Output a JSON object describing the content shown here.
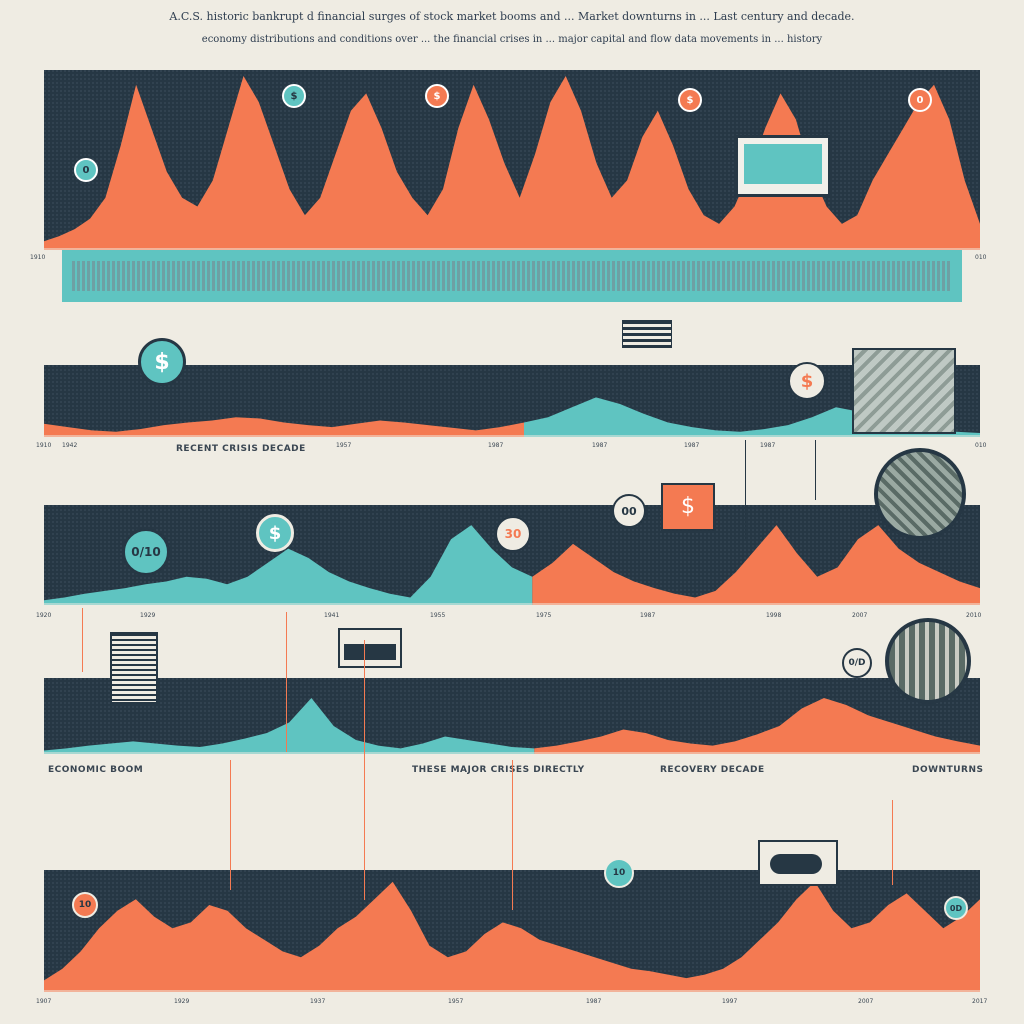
{
  "header": {
    "line1": "A.C.S. historic bankrupt d financial surges of stock market booms and ... Market downturns in ... Last century and decade.",
    "line2": "economy distributions and conditions over ... the financial crises in ... major capital and flow data movements in ... history"
  },
  "colors": {
    "background": "#efece3",
    "band": "#263744",
    "accent_orange": "#f47a52",
    "accent_teal": "#5fc4c1",
    "text": "#2a3340"
  },
  "icons": [
    "dollar-icon",
    "flag-icon",
    "bull-icon",
    "monitor-icon",
    "money-stack-icon",
    "city-icon",
    "arrow-down-icon",
    "pin-icon"
  ],
  "bands": [
    {
      "ticks_left": "1910",
      "ticks_right": "010"
    },
    {
      "ticks": [
        "1910",
        "1942",
        "1957",
        "1987",
        "1987",
        "1987",
        "1987",
        "010"
      ]
    },
    {
      "ticks": [
        "1920",
        "1929",
        "1941",
        "1955",
        "1975",
        "1987",
        "1998",
        "2007",
        "2010"
      ]
    },
    {
      "ticks": []
    },
    {
      "ticks": [
        "1907",
        "1929",
        "1937",
        "1957",
        "1987",
        "1997",
        "2007",
        "2017"
      ]
    }
  ],
  "markers": {
    "m1": "0",
    "m2": "$",
    "m3": "$",
    "m4": "$",
    "m5": "0",
    "m6": "$",
    "m7": "$",
    "m8": "0",
    "m9": "30",
    "m10": "00",
    "m11": "$",
    "m12": "0/10",
    "m13": "0/D",
    "m14": "10",
    "m15": "10",
    "m16": "0D"
  },
  "headings": {
    "h1": "RECENT CRISIS DECADE",
    "h2": "ECONOMIC BOOM",
    "h3": "THESE MAJOR CRISES DIRECTLY",
    "h4": "RECOVERY DECADE",
    "h5": "DOWNTURNS"
  },
  "chart_data": [
    {
      "type": "area",
      "series": [
        {
          "values": [
            5,
            8,
            12,
            18,
            30,
            60,
            95,
            70,
            45,
            30,
            25,
            40,
            70,
            100,
            85,
            60,
            35,
            20,
            30,
            55,
            80,
            90,
            70,
            45,
            30,
            20,
            35,
            70,
            95,
            75,
            50,
            30,
            55,
            85,
            100,
            80,
            50,
            30,
            40,
            65,
            80,
            60,
            35,
            20,
            15,
            25,
            45,
            70,
            90,
            75,
            45,
            25,
            15,
            20,
            40,
            55,
            70,
            85,
            95,
            75,
            40,
            15
          ]
        }
      ]
    },
    {
      "type": "area",
      "series": [
        {
          "values": [
            20,
            15,
            10,
            8,
            12,
            18,
            22,
            25,
            30,
            28,
            22,
            18,
            15,
            20,
            25,
            22,
            18,
            14,
            10,
            15,
            22,
            30,
            45,
            60,
            50,
            35,
            22,
            15,
            10,
            8,
            12,
            18,
            30,
            45,
            38,
            25,
            15,
            10,
            8,
            6
          ]
        }
      ]
    },
    {
      "type": "area",
      "series": [
        {
          "values": [
            5,
            8,
            12,
            15,
            18,
            22,
            25,
            30,
            28,
            22,
            30,
            45,
            60,
            50,
            35,
            25,
            18,
            12,
            8,
            30,
            70,
            85,
            60,
            40,
            30,
            45,
            65,
            50,
            35,
            25,
            18,
            12,
            8,
            15,
            35,
            60,
            85,
            55,
            30,
            40,
            70,
            85,
            60,
            45,
            35,
            25,
            18
          ]
        }
      ]
    },
    {
      "type": "area",
      "series": [
        {
          "values": [
            5,
            8,
            12,
            15,
            18,
            15,
            12,
            10,
            15,
            22,
            30,
            45,
            80,
            40,
            20,
            12,
            8,
            15,
            25,
            20,
            15,
            10,
            8,
            12,
            18,
            25,
            35,
            30,
            20,
            15,
            12,
            18,
            28,
            40,
            65,
            80,
            70,
            55,
            45,
            35,
            25,
            18,
            12
          ]
        }
      ]
    },
    {
      "type": "area",
      "series": [
        {
          "values": [
            10,
            20,
            35,
            55,
            70,
            80,
            65,
            55,
            60,
            75,
            70,
            55,
            45,
            35,
            30,
            40,
            55,
            65,
            80,
            95,
            70,
            40,
            30,
            35,
            50,
            60,
            55,
            45,
            40,
            35,
            30,
            25,
            20,
            18,
            15,
            12,
            15,
            20,
            30,
            45,
            60,
            80,
            95,
            70,
            55,
            60,
            75,
            85,
            70,
            55,
            65,
            80
          ]
        }
      ]
    }
  ]
}
